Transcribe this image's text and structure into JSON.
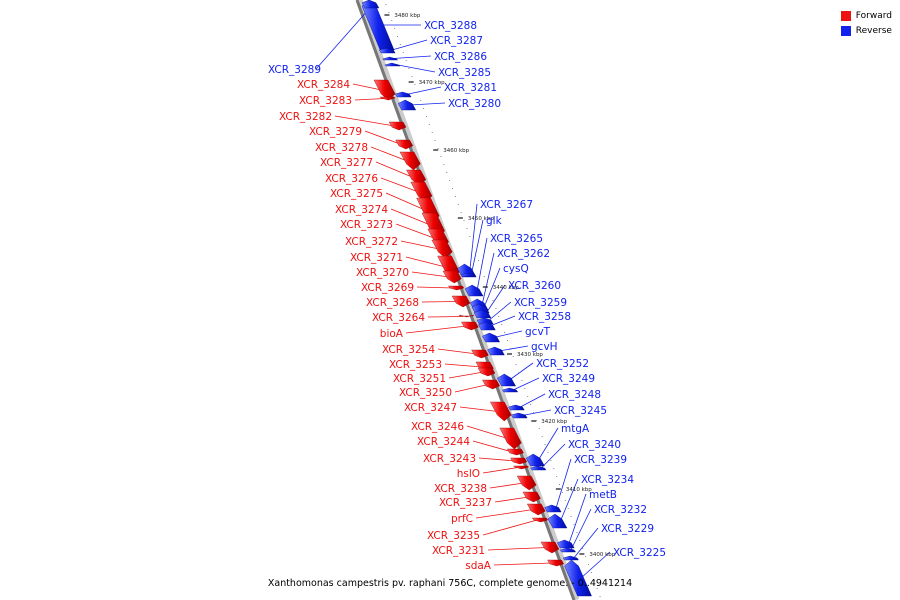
{
  "legend": {
    "forward_label": "Forward",
    "reverse_label": "Reverse",
    "forward_color": "#ee1111",
    "reverse_color": "#1122ee"
  },
  "caption": "Xanthomonas campestris pv. raphani 756C, complete genome. - 0..4941214",
  "ticks": [
    "3480 kbp",
    "3470 kbp",
    "3460 kbp",
    "3450 kbp",
    "3440 kbp",
    "3430 kbp",
    "3420 kbp",
    "3410 kbp",
    "3400 kbp"
  ],
  "reverse_labels": [
    "XCR_3288",
    "XCR_3287",
    "XCR_3286",
    "XCR_3285",
    "XCR_3281",
    "XCR_3280",
    "XCR_3289",
    "XCR_3267",
    "glk",
    "XCR_3265",
    "XCR_3262",
    "cysQ",
    "XCR_3260",
    "XCR_3259",
    "XCR_3258",
    "gcvT",
    "gcvH",
    "XCR_3252",
    "XCR_3249",
    "XCR_3248",
    "XCR_3245",
    "mtgA",
    "XCR_3240",
    "XCR_3239",
    "XCR_3234",
    "metB",
    "XCR_3232",
    "XCR_3229",
    "XCR_3225"
  ],
  "forward_labels": [
    "XCR_3284",
    "XCR_3283",
    "XCR_3282",
    "XCR_3279",
    "XCR_3278",
    "XCR_3277",
    "XCR_3276",
    "XCR_3275",
    "XCR_3274",
    "XCR_3273",
    "XCR_3272",
    "XCR_3271",
    "XCR_3270",
    "XCR_3269",
    "XCR_3268",
    "XCR_3264",
    "bioA",
    "XCR_3254",
    "XCR_3253",
    "XCR_3251",
    "XCR_3250",
    "XCR_3247",
    "XCR_3246",
    "XCR_3244",
    "XCR_3243",
    "hslO",
    "XCR_3238",
    "XCR_3237",
    "prfC",
    "XCR_3235",
    "XCR_3231",
    "sdaA"
  ]
}
